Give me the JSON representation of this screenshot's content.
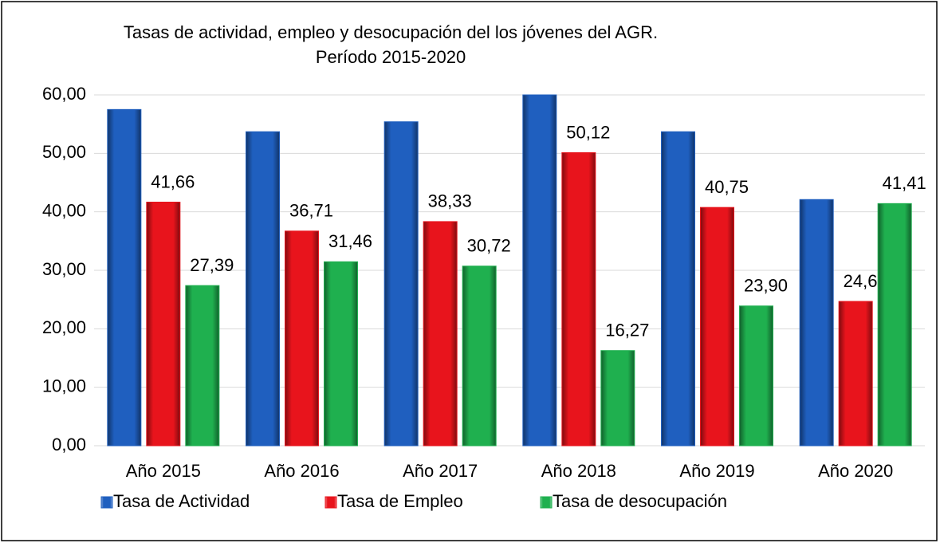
{
  "chart_data": {
    "type": "bar",
    "title": "Tasas de actividad, empleo y desocupación del los jóvenes del AGR.",
    "subtitle": "Período 2015-2020",
    "categories": [
      "Año 2015",
      "Año 2016",
      "Año 2017",
      "Año 2018",
      "Año 2019",
      "Año 2020"
    ],
    "series": [
      {
        "name": "Tasa de Actividad",
        "color": "#1f5fbf",
        "values": [
          57.5,
          53.7,
          55.4,
          60.0,
          53.7,
          42.1
        ]
      },
      {
        "name": "Tasa de Empleo",
        "color": "#e8141c",
        "values": [
          41.66,
          36.71,
          38.33,
          50.12,
          40.75,
          24.68
        ],
        "value_labels": [
          "41,66",
          "36,71",
          "38,33",
          "50,12",
          "40,75",
          "24,68"
        ]
      },
      {
        "name": "Tasa de desocupación",
        "color": "#1fb04f",
        "values": [
          27.39,
          31.46,
          30.72,
          16.27,
          23.9,
          41.41
        ],
        "value_labels": [
          "27,39",
          "31,46",
          "30,72",
          "16,27",
          "23,90",
          "41,41"
        ]
      }
    ],
    "ylim": [
      0,
      60
    ],
    "yticks": [
      {
        "value": 0,
        "label": "0,00"
      },
      {
        "value": 10,
        "label": "10,00"
      },
      {
        "value": 20,
        "label": "20,00"
      },
      {
        "value": 30,
        "label": "30,00"
      },
      {
        "value": 40,
        "label": "40,00"
      },
      {
        "value": 50,
        "label": "50,00"
      },
      {
        "value": 60,
        "label": "60,00"
      }
    ],
    "grid": true,
    "legend": "bottom"
  }
}
